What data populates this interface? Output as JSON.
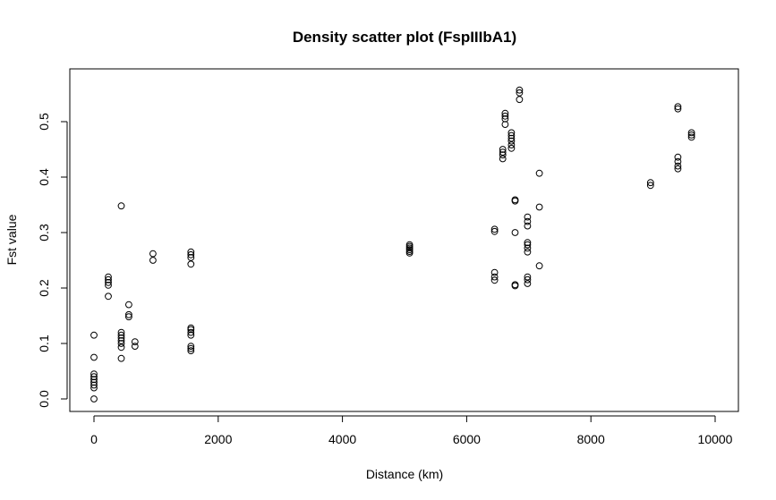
{
  "chart_data": {
    "type": "scatter",
    "title": "Density scatter plot (FspIIIbA1)",
    "xlabel": "Distance (km)",
    "ylabel": "Fst value",
    "xlim": [
      0,
      10000
    ],
    "ylim": [
      0,
      0.55
    ],
    "x_ticks": [
      0,
      2000,
      4000,
      6000,
      8000,
      10000
    ],
    "x_tick_labels": [
      "0",
      "2000",
      "4000",
      "6000",
      "8000",
      "10000"
    ],
    "y_ticks": [
      0.0,
      0.1,
      0.2,
      0.3,
      0.4,
      0.5
    ],
    "y_tick_labels": [
      "0.0",
      "0.1",
      "0.2",
      "0.3",
      "0.4",
      "0.5"
    ],
    "grid": false,
    "legend": "none",
    "marker": "open-circle",
    "points": [
      [
        0,
        0.0
      ],
      [
        0,
        0.02
      ],
      [
        0,
        0.025
      ],
      [
        0,
        0.03
      ],
      [
        0,
        0.035
      ],
      [
        0,
        0.04
      ],
      [
        0,
        0.045
      ],
      [
        0,
        0.075
      ],
      [
        0,
        0.115
      ],
      [
        230,
        0.185
      ],
      [
        230,
        0.205
      ],
      [
        230,
        0.21
      ],
      [
        230,
        0.215
      ],
      [
        230,
        0.22
      ],
      [
        440,
        0.073
      ],
      [
        440,
        0.093
      ],
      [
        440,
        0.1
      ],
      [
        440,
        0.105
      ],
      [
        440,
        0.11
      ],
      [
        440,
        0.115
      ],
      [
        440,
        0.12
      ],
      [
        440,
        0.348
      ],
      [
        560,
        0.148
      ],
      [
        560,
        0.152
      ],
      [
        560,
        0.17
      ],
      [
        660,
        0.095
      ],
      [
        660,
        0.103
      ],
      [
        950,
        0.25
      ],
      [
        950,
        0.262
      ],
      [
        1560,
        0.087
      ],
      [
        1560,
        0.091
      ],
      [
        1560,
        0.095
      ],
      [
        1560,
        0.115
      ],
      [
        1560,
        0.12
      ],
      [
        1560,
        0.125
      ],
      [
        1560,
        0.128
      ],
      [
        1560,
        0.243
      ],
      [
        1560,
        0.255
      ],
      [
        1560,
        0.26
      ],
      [
        1560,
        0.265
      ],
      [
        5080,
        0.263
      ],
      [
        5080,
        0.266
      ],
      [
        5080,
        0.269
      ],
      [
        5080,
        0.272
      ],
      [
        5080,
        0.275
      ],
      [
        5080,
        0.278
      ],
      [
        6450,
        0.214
      ],
      [
        6450,
        0.22
      ],
      [
        6450,
        0.228
      ],
      [
        6450,
        0.302
      ],
      [
        6450,
        0.306
      ],
      [
        6580,
        0.433
      ],
      [
        6580,
        0.44
      ],
      [
        6580,
        0.445
      ],
      [
        6580,
        0.45
      ],
      [
        6620,
        0.495
      ],
      [
        6620,
        0.505
      ],
      [
        6620,
        0.51
      ],
      [
        6620,
        0.515
      ],
      [
        6720,
        0.452
      ],
      [
        6720,
        0.458
      ],
      [
        6720,
        0.465
      ],
      [
        6720,
        0.47
      ],
      [
        6720,
        0.475
      ],
      [
        6720,
        0.48
      ],
      [
        6780,
        0.204
      ],
      [
        6780,
        0.206
      ],
      [
        6780,
        0.3
      ],
      [
        6780,
        0.357
      ],
      [
        6780,
        0.359
      ],
      [
        6850,
        0.54
      ],
      [
        6850,
        0.552
      ],
      [
        6850,
        0.557
      ],
      [
        6980,
        0.208
      ],
      [
        6980,
        0.215
      ],
      [
        6980,
        0.22
      ],
      [
        6980,
        0.265
      ],
      [
        6980,
        0.272
      ],
      [
        6980,
        0.278
      ],
      [
        6980,
        0.282
      ],
      [
        6980,
        0.312
      ],
      [
        6980,
        0.32
      ],
      [
        6980,
        0.328
      ],
      [
        7170,
        0.24
      ],
      [
        7170,
        0.346
      ],
      [
        7170,
        0.407
      ],
      [
        8960,
        0.385
      ],
      [
        8960,
        0.39
      ],
      [
        9400,
        0.415
      ],
      [
        9400,
        0.42
      ],
      [
        9400,
        0.428
      ],
      [
        9400,
        0.436
      ],
      [
        9400,
        0.523
      ],
      [
        9400,
        0.527
      ],
      [
        9620,
        0.472
      ],
      [
        9620,
        0.476
      ],
      [
        9620,
        0.48
      ]
    ]
  }
}
